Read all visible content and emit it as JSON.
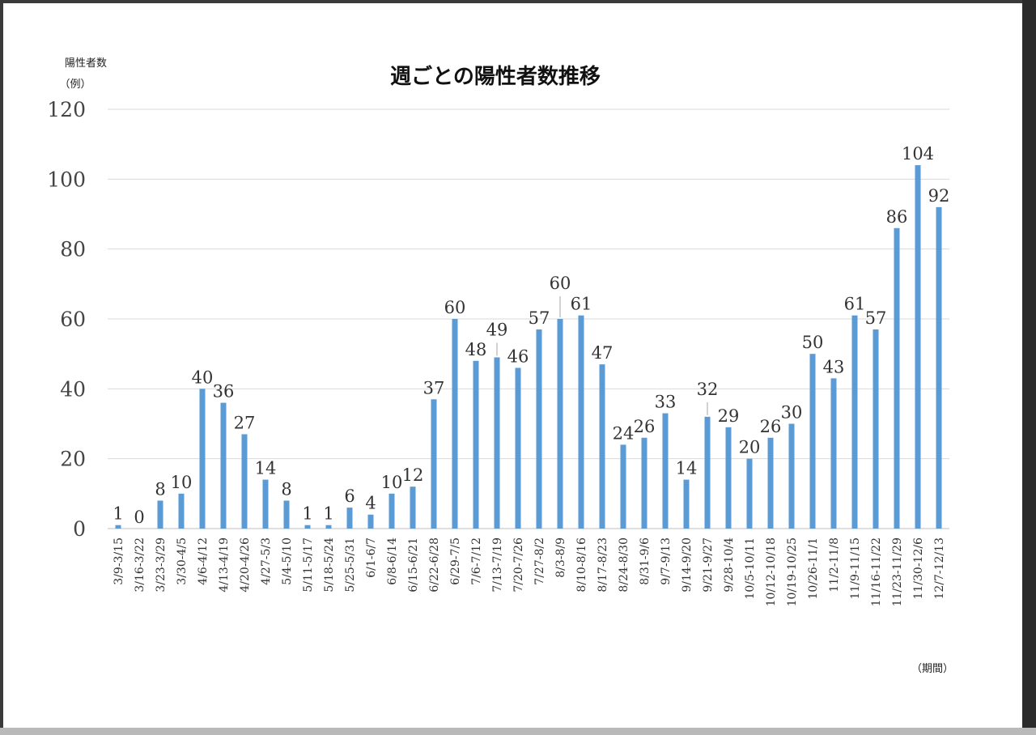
{
  "chart_data": {
    "type": "bar",
    "title": "週ごとの陽性者数推移",
    "ylabel_line1": "陽性者数",
    "ylabel_line2": "（例）",
    "xlabel": "（期間）",
    "ylim": [
      0,
      120
    ],
    "yticks": [
      0,
      20,
      40,
      60,
      80,
      100,
      120
    ],
    "grid": true,
    "bar_color": "#5b9bd5",
    "categories": [
      "3/9-3/15",
      "3/16-3/22",
      "3/23-3/29",
      "3/30-4/5",
      "4/6-4/12",
      "4/13-4/19",
      "4/20-4/26",
      "4/27-5/3",
      "5/4-5/10",
      "5/11-5/17",
      "5/18-5/24",
      "5/25-5/31",
      "6/1-6/7",
      "6/8-6/14",
      "6/15-6/21",
      "6/22-6/28",
      "6/29-7/5",
      "7/6-7/12",
      "7/13-7/19",
      "7/20-7/26",
      "7/27-8/2",
      "8/3-8/9",
      "8/10-8/16",
      "8/17-8/23",
      "8/24-8/30",
      "8/31-9/6",
      "9/7-9/13",
      "9/14-9/20",
      "9/21-9/27",
      "9/28-10/4",
      "10/5-10/11",
      "10/12-10/18",
      "10/19-10/25",
      "10/26-11/1",
      "11/2-11/8",
      "11/9-11/15",
      "11/16-11/22",
      "11/23-11/29",
      "11/30-12/6",
      "12/7-12/13"
    ],
    "values": [
      1,
      0,
      8,
      10,
      40,
      36,
      27,
      14,
      8,
      1,
      1,
      6,
      4,
      10,
      12,
      37,
      60,
      48,
      49,
      46,
      57,
      60,
      61,
      47,
      24,
      26,
      33,
      14,
      32,
      29,
      20,
      26,
      30,
      50,
      43,
      61,
      57,
      86,
      104,
      92
    ]
  }
}
